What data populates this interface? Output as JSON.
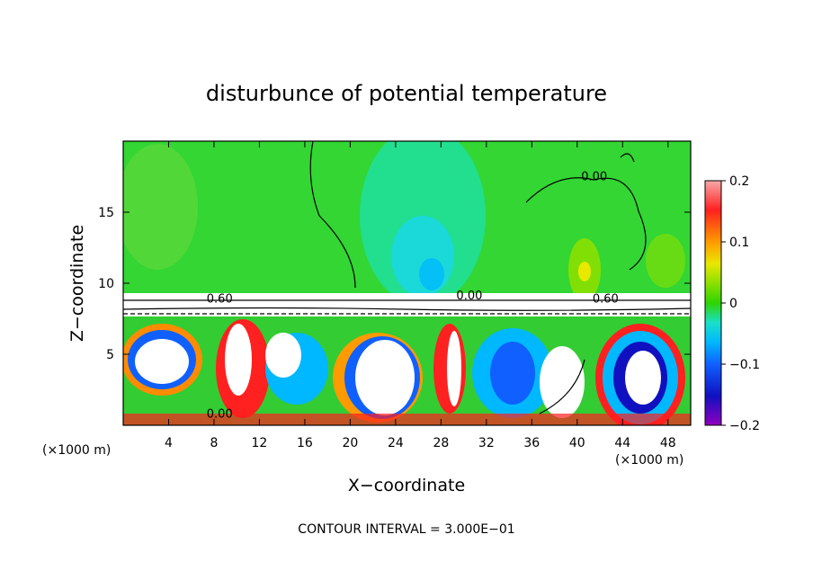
{
  "chart_data": {
    "type": "heatmap",
    "title": "disturbunce of potential temperature",
    "xlabel": "X−coordinate",
    "ylabel": "Z−coordinate",
    "x_unit_label": "(×1000 m)",
    "xlim": [
      0,
      50
    ],
    "ylim": [
      0,
      20
    ],
    "x_ticks": [
      4,
      8,
      12,
      16,
      20,
      24,
      28,
      32,
      36,
      40,
      44,
      48
    ],
    "y_ticks": [
      5,
      10,
      15
    ],
    "grid": false,
    "colorbar": {
      "range": [
        -0.2,
        0.2
      ],
      "ticks": [
        {
          "value": 0.2,
          "label": "0.2"
        },
        {
          "value": 0.1,
          "label": "0.1"
        },
        {
          "value": 0,
          "label": "0"
        },
        {
          "value": -0.1,
          "label": "−0.1"
        },
        {
          "value": -0.2,
          "label": "−0.2"
        }
      ]
    },
    "contour_labels": [
      {
        "x": 8.5,
        "z": 8.9,
        "text": "0.60"
      },
      {
        "x": 30.5,
        "z": 9.1,
        "text": "0.00"
      },
      {
        "x": 42.5,
        "z": 8.9,
        "text": "0.60"
      },
      {
        "x": 8.5,
        "z": 0.8,
        "text": "0.00"
      },
      {
        "x": 41.5,
        "z": 17.5,
        "text": "0.00"
      }
    ],
    "footer": "CONTOUR INTERVAL = 3.000E−01"
  }
}
